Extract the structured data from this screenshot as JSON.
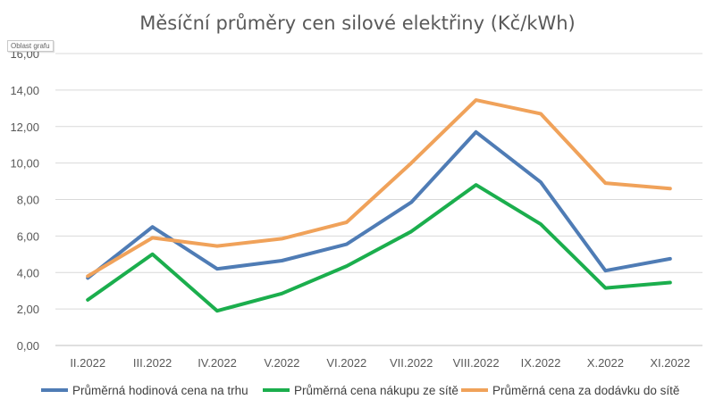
{
  "chart_data": {
    "type": "line",
    "title": "Měsíční průměry cen silové elektřiny (Kč/kWh)",
    "tooltip": "Oblast grafu",
    "categories": [
      "II.2022",
      "III.2022",
      "IV.2022",
      "V.2022",
      "VI.2022",
      "VII.2022",
      "VIII.2022",
      "IX.2022",
      "X.2022",
      "XI.2022"
    ],
    "y_ticks": [
      "0,00",
      "2,00",
      "4,00",
      "6,00",
      "8,00",
      "10,00",
      "12,00",
      "14,00",
      "16,00"
    ],
    "ylim": [
      0,
      16
    ],
    "grid": true,
    "legend_position": "bottom",
    "series": [
      {
        "name": "Průměrná hodinová cena na trhu",
        "color": "#4F7CB5",
        "values": [
          3.7,
          6.5,
          4.2,
          4.65,
          5.55,
          7.85,
          11.7,
          8.95,
          4.1,
          4.75
        ]
      },
      {
        "name": "Průměrná cena nákupu ze sítě",
        "color": "#1BAE4D",
        "values": [
          2.5,
          5.0,
          1.9,
          2.85,
          4.35,
          6.25,
          8.8,
          6.65,
          3.15,
          3.45
        ]
      },
      {
        "name": "Průměrná cena za dodávku do sítě",
        "color": "#F0A25A",
        "values": [
          3.8,
          5.9,
          5.45,
          5.85,
          6.75,
          10.0,
          13.45,
          12.7,
          8.9,
          8.6
        ]
      }
    ]
  }
}
